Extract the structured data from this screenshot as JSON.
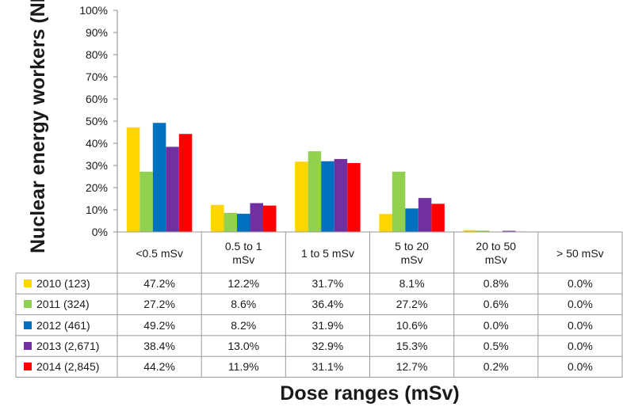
{
  "chart_data": {
    "type": "bar",
    "ylabel": "Nuclear energy workers (NEWs)",
    "xlabel": "Dose ranges (mSv)",
    "ylim": [
      0,
      100
    ],
    "yticks": [
      "0%",
      "10%",
      "20%",
      "30%",
      "40%",
      "50%",
      "60%",
      "70%",
      "80%",
      "90%",
      "100%"
    ],
    "grid": false,
    "categories": [
      "<0.5  mSv",
      "0.5 to 1\nmSv",
      "1 to 5 mSv",
      "5 to 20\nmSv",
      "20 to 50\nmSv",
      "> 50 mSv"
    ],
    "series": [
      {
        "name": "2010 (123)",
        "color": "#FFD500",
        "values": [
          47.2,
          12.2,
          31.7,
          8.1,
          0.8,
          0.0
        ],
        "labels": [
          "47.2%",
          "12.2%",
          "31.7%",
          "8.1%",
          "0.8%",
          "0.0%"
        ]
      },
      {
        "name": "2011 (324)",
        "color": "#92D050",
        "values": [
          27.2,
          8.6,
          36.4,
          27.2,
          0.6,
          0.0
        ],
        "labels": [
          "27.2%",
          "8.6%",
          "36.4%",
          "27.2%",
          "0.6%",
          "0.0%"
        ]
      },
      {
        "name": "2012 (461)",
        "color": "#0070C0",
        "values": [
          49.2,
          8.2,
          31.9,
          10.6,
          0.0,
          0.0
        ],
        "labels": [
          "49.2%",
          "8.2%",
          "31.9%",
          "10.6%",
          "0.0%",
          "0.0%"
        ]
      },
      {
        "name": "2013 (2,671)",
        "color": "#7030A0",
        "values": [
          38.4,
          13.0,
          32.9,
          15.3,
          0.5,
          0.0
        ],
        "labels": [
          "38.4%",
          "13.0%",
          "32.9%",
          "15.3%",
          "0.5%",
          "0.0%"
        ]
      },
      {
        "name": "2014 (2,845)",
        "color": "#FF0000",
        "values": [
          44.2,
          11.9,
          31.1,
          12.7,
          0.2,
          0.0
        ],
        "labels": [
          "44.2%",
          "11.9%",
          "31.1%",
          "12.7%",
          "0.2%",
          "0.0%"
        ]
      }
    ]
  }
}
